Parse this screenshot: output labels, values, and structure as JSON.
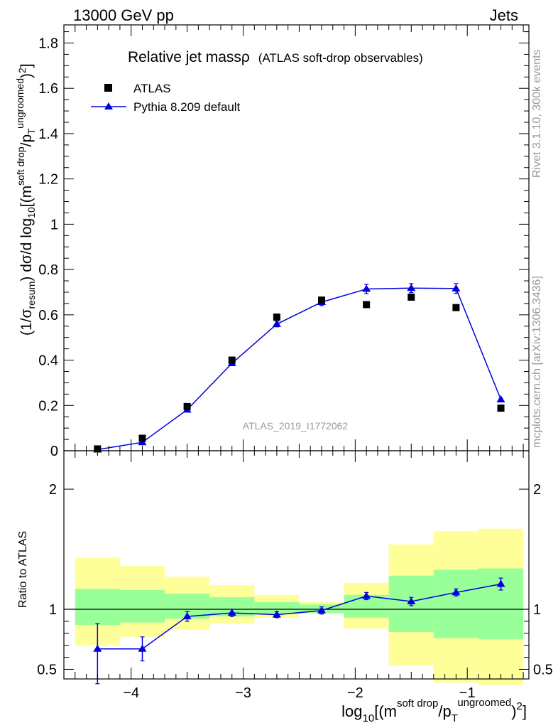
{
  "header": {
    "left": "13000 GeV pp",
    "right": "Jets"
  },
  "side_text": {
    "rivet": "Rivet 3.1.10,  300k events",
    "mcplots": "mcplots.cern.ch [arXiv:1306.3436]"
  },
  "colors": {
    "atlas_marker": "#000000",
    "pythia": "#0000dd",
    "band_inner": "#99ff99",
    "band_outer": "#ffff99",
    "watermark": "#999999"
  },
  "chart_data": [
    {
      "type": "scatter",
      "panel": "main",
      "title": "Relative jet massρ",
      "subtitle": "(ATLAS soft-drop observables)",
      "analysis_label": "ATLAS_2019_I1772062",
      "ylabel": "(1/σresum) dσ/d log10[(m soft drop/pT ungroomed)2]",
      "ylabel_parts": {
        "a": "(1/σ",
        "b": "resum",
        "c": ") dσ/d log",
        "d": "10",
        "e": "[(m",
        "f": "soft drop",
        "g": "/p",
        "h": "T",
        "i": "ungroomed",
        "j": ")",
        "k": "2",
        "l": "]"
      },
      "xlim": [
        -4.6,
        -0.45
      ],
      "ylim": [
        0,
        1.88
      ],
      "yticks": [
        0,
        0.2,
        0.4,
        0.6,
        0.8,
        1,
        1.2,
        1.4,
        1.6,
        1.8
      ],
      "ytick_labels": [
        "0",
        "0.2",
        "0.4",
        "0.6",
        "0.8",
        "1",
        "1.2",
        "1.4",
        "1.6",
        "1.8"
      ],
      "legend": {
        "position": "top-left",
        "entries": [
          "ATLAS",
          "Pythia 8.209 default"
        ]
      },
      "series": [
        {
          "name": "ATLAS",
          "marker": "square",
          "x": [
            -4.3,
            -3.9,
            -3.5,
            -3.1,
            -2.7,
            -2.3,
            -1.9,
            -1.5,
            -1.1,
            -0.7
          ],
          "y": [
            0.008,
            0.055,
            0.195,
            0.4,
            0.59,
            0.665,
            0.645,
            0.678,
            0.632,
            0.188
          ]
        },
        {
          "name": "Pythia 8.209 default",
          "marker": "triangle",
          "x": [
            -4.3,
            -3.9,
            -3.5,
            -3.1,
            -2.7,
            -2.3,
            -1.9,
            -1.5,
            -1.1,
            -0.7
          ],
          "y": [
            0.005,
            0.037,
            0.181,
            0.386,
            0.559,
            0.656,
            0.714,
            0.718,
            0.716,
            0.226
          ],
          "yerr": [
            0.003,
            0.006,
            0.008,
            0.01,
            0.012,
            0.015,
            0.02,
            0.02,
            0.022,
            0.006
          ]
        }
      ]
    },
    {
      "type": "scatter",
      "panel": "ratio",
      "ylabel": "Ratio to ATLAS",
      "xlabel": "log10[(m soft drop/pT ungroomed)2]",
      "xlabel_parts": {
        "a": "log",
        "b": "10",
        "c": "[(m",
        "d": "soft drop",
        "e": "/p",
        "f": "T",
        "g": "ungroomed",
        "h": ")",
        "i": "2",
        "j": "]"
      },
      "xlim": [
        -4.6,
        -0.45
      ],
      "ylim": [
        0.42,
        2.32
      ],
      "xticks": [
        -4,
        -3,
        -2,
        -1
      ],
      "xtick_labels": [
        "−4",
        "−3",
        "−2",
        "−1"
      ],
      "yticks": [
        0.5,
        1,
        2
      ],
      "ytick_labels": [
        "0.5",
        "1",
        "2"
      ],
      "bins": [
        {
          "lo": -4.5,
          "hi": -4.1,
          "inner": [
            0.87,
            1.17
          ],
          "outer": [
            0.7,
            1.43
          ]
        },
        {
          "lo": -4.1,
          "hi": -3.7,
          "inner": [
            0.89,
            1.16
          ],
          "outer": [
            0.77,
            1.36
          ]
        },
        {
          "lo": -3.7,
          "hi": -3.3,
          "inner": [
            0.92,
            1.13
          ],
          "outer": [
            0.83,
            1.27
          ]
        },
        {
          "lo": -3.3,
          "hi": -2.9,
          "inner": [
            0.94,
            1.1
          ],
          "outer": [
            0.88,
            1.2
          ]
        },
        {
          "lo": -2.9,
          "hi": -2.5,
          "inner": [
            0.96,
            1.06
          ],
          "outer": [
            0.93,
            1.12
          ]
        },
        {
          "lo": -2.5,
          "hi": -2.1,
          "inner": [
            0.97,
            1.04
          ],
          "outer": [
            0.96,
            1.06
          ]
        },
        {
          "lo": -2.1,
          "hi": -1.7,
          "inner": [
            0.93,
            1.12
          ],
          "outer": [
            0.84,
            1.22
          ]
        },
        {
          "lo": -1.7,
          "hi": -1.3,
          "inner": [
            0.81,
            1.28
          ],
          "outer": [
            0.53,
            1.54
          ]
        },
        {
          "lo": -1.3,
          "hi": -0.9,
          "inner": [
            0.76,
            1.33
          ],
          "outer": [
            0.39,
            1.65
          ]
        },
        {
          "lo": -0.9,
          "hi": -0.5,
          "inner": [
            0.75,
            1.34
          ],
          "outer": [
            0.37,
            1.67
          ]
        }
      ],
      "series": [
        {
          "name": "Pythia 8.209 default",
          "x": [
            -4.3,
            -3.9,
            -3.5,
            -3.1,
            -2.7,
            -2.3,
            -1.9,
            -1.5,
            -1.1,
            -0.7
          ],
          "y": [
            0.67,
            0.67,
            0.94,
            0.97,
            0.955,
            0.99,
            1.11,
            1.065,
            1.14,
            1.21
          ],
          "ylo": [
            0.38,
            0.57,
            0.9,
            0.94,
            0.93,
            0.96,
            1.08,
            1.03,
            1.11,
            1.16
          ],
          "yhi": [
            0.88,
            0.77,
            0.98,
            1.0,
            0.98,
            1.02,
            1.14,
            1.1,
            1.17,
            1.26
          ]
        }
      ]
    }
  ]
}
